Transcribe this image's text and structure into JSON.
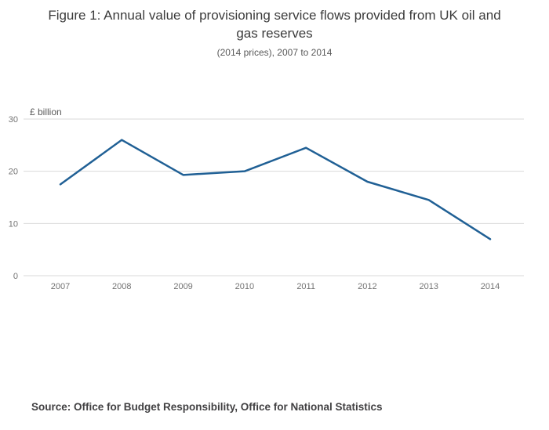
{
  "figure": {
    "title": "Figure 1: Annual value of provisioning service flows provided from UK oil and gas reserves",
    "subtitle": "(2014 prices), 2007 to 2014",
    "source": "Source: Office for Budget Responsibility, Office for National Statistics"
  },
  "chart_data": {
    "type": "line",
    "title": "Figure 1: Annual value of provisioning service flows provided from UK oil and gas reserves",
    "subtitle": "(2014 prices), 2007 to 2014",
    "x": [
      2007,
      2008,
      2009,
      2010,
      2011,
      2012,
      2013,
      2014
    ],
    "values": [
      17.5,
      26,
      19.3,
      20,
      24.5,
      18,
      14.5,
      7
    ],
    "xlabel": "",
    "ylabel": "£ billion",
    "ylim": [
      0,
      30
    ],
    "yticks": [
      0,
      10,
      20,
      30
    ],
    "grid": true,
    "legend": false,
    "line_color": "#206095",
    "grid_color": "#d9d9d9",
    "tick_color": "#737373"
  }
}
